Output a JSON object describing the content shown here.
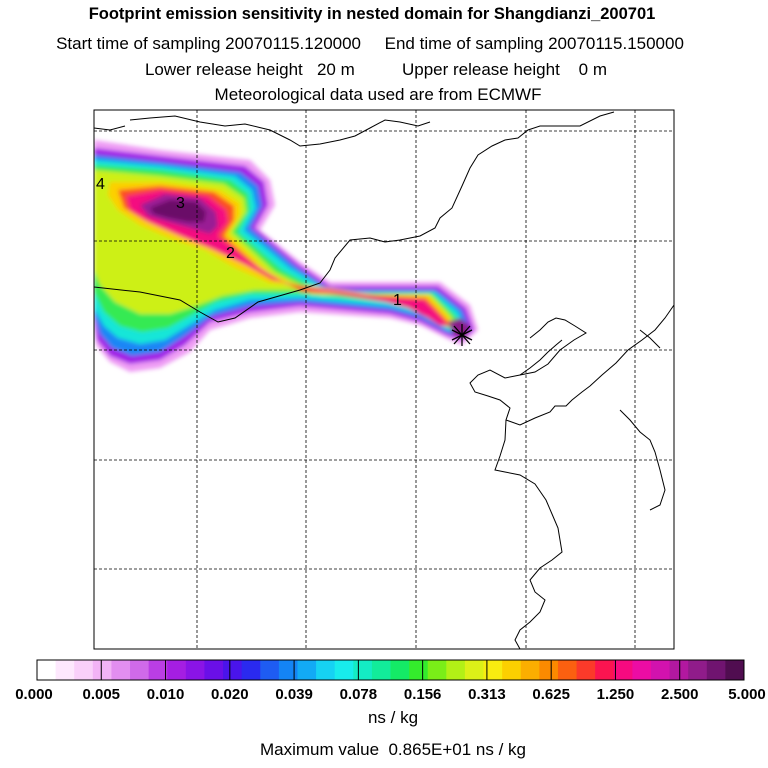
{
  "titles": {
    "main": "Footprint emission sensitivity in nested domain for Shangdianzi_200701",
    "sampling": "Start time of sampling 20070115.120000     End time of sampling 20070115.150000",
    "release": "Lower release height   20 m          Upper release height    0 m",
    "met": "Meteorological data used are from ECMWF"
  },
  "plume_labels": [
    "1",
    "2",
    "3",
    "4"
  ],
  "colorbar": {
    "ticks": [
      "0.000",
      "0.005",
      "0.010",
      "0.020",
      "0.039",
      "0.078",
      "0.156",
      "0.313",
      "0.625",
      "1.250",
      "2.500",
      "5.000"
    ],
    "colors": [
      "#ffffff",
      "#fde8fd",
      "#f9d0fa",
      "#f2b3f6",
      "#e28ef0",
      "#d06ae9",
      "#ba3ee4",
      "#a51ee3",
      "#8a14e6",
      "#6a0fe8",
      "#4a14eb",
      "#2a2aef",
      "#1e5cf2",
      "#1484f5",
      "#12aaf5",
      "#16d2f3",
      "#18ecec",
      "#14ecc4",
      "#12ec9a",
      "#14ea66",
      "#34ec2c",
      "#7aee18",
      "#b2f016",
      "#dcf018",
      "#f8ec10",
      "#fcd000",
      "#fcae00",
      "#fc8a00",
      "#fc6010",
      "#fc3a2a",
      "#fc1450",
      "#f70a80",
      "#ec0ca4",
      "#d212ae",
      "#b218a0",
      "#901c8a",
      "#701470",
      "#500d50"
    ]
  },
  "units": "ns / kg",
  "max_value": "Maximum value  0.865E+01 ns / kg",
  "chart_data": {
    "type": "heatmap",
    "title": "Footprint emission sensitivity in nested domain for Shangdianzi_200701",
    "colorbar_ticks": [
      0.0,
      0.005,
      0.01,
      0.02,
      0.039,
      0.078,
      0.156,
      0.313,
      0.625,
      1.25,
      2.5,
      5.0
    ],
    "units": "ns / kg",
    "max_value": 8.65,
    "plume_labels": [
      "1",
      "2",
      "3",
      "4"
    ],
    "grid": true
  }
}
